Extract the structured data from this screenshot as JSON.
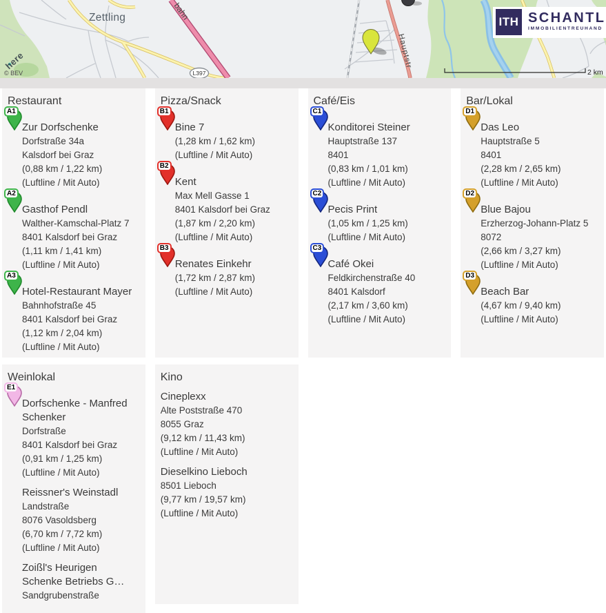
{
  "map": {
    "town_label": "Zettling",
    "autobahn_label": "bahn",
    "street_label": "Hauptstr",
    "shield_label": "L397",
    "provider_watermark": "here",
    "attribution": "© BEV",
    "scale_label": "2 km",
    "property_marker_color": "#d9e53c"
  },
  "logo": {
    "monogram": "ITH",
    "name": "SCHANTL",
    "subtitle": "IMMOBILIENTREUHAND",
    "brand_color": "#322c5f"
  },
  "categories": [
    {
      "title": "Restaurant",
      "slug": "restaurant",
      "row": 1,
      "indent": true,
      "color": "#3eb44a",
      "color_dark": "#1f8a2b",
      "items": [
        {
          "pin": "A1",
          "name": "Zur Dorfschenke",
          "lines": [
            "Dorfstraße 34a",
            "Kalsdorf bei Graz",
            "(0,88 km / 1,22 km)",
            "(Luftline / Mit Auto)"
          ]
        },
        {
          "pin": "A2",
          "name": "Gasthof Pendl",
          "lines": [
            "Walther-Kamschal-Platz 7",
            "8401 Kalsdorf bei Graz",
            "(1,11 km / 1,41 km)",
            "(Luftline / Mit Auto)"
          ]
        },
        {
          "pin": "A3",
          "name": "Hotel-Restaurant Mayer",
          "lines": [
            "Bahnhofstraße 45",
            "8401 Kalsdorf bei Graz",
            "(1,12 km / 2,04 km)",
            "(Luftline / Mit Auto)"
          ]
        }
      ]
    },
    {
      "title": "Pizza/Snack",
      "slug": "pizza-snack",
      "row": 1,
      "indent": true,
      "color": "#e2302a",
      "color_dark": "#9c1710",
      "items": [
        {
          "pin": "B1",
          "name": "Bine 7",
          "lines": [
            "(1,28 km / 1,62 km)",
            "(Luftline / Mit Auto)"
          ]
        },
        {
          "pin": "B2",
          "name": "Kent",
          "lines": [
            "Max Mell Gasse 1",
            "8401 Kalsdorf bei Graz",
            "(1,87 km / 2,20 km)",
            "(Luftline / Mit Auto)"
          ]
        },
        {
          "pin": "B3",
          "name": "Renates Einkehr",
          "lines": [
            "(1,72 km / 2,87 km)",
            "(Luftline / Mit Auto)"
          ]
        }
      ]
    },
    {
      "title": "Café/Eis",
      "slug": "cafe-eis",
      "row": 1,
      "indent": true,
      "color": "#2b4ed6",
      "color_dark": "#14267c",
      "items": [
        {
          "pin": "C1",
          "name": "Konditorei Steiner",
          "lines": [
            "Hauptstraße 137",
            "8401",
            "(0,83 km / 1,01 km)",
            "(Luftline / Mit Auto)"
          ]
        },
        {
          "pin": "C2",
          "name": "Pecis Print",
          "lines": [
            "(1,05 km / 1,25 km)",
            "(Luftline / Mit Auto)"
          ]
        },
        {
          "pin": "C3",
          "name": "Café Okei",
          "lines": [
            "Feldkirchenstraße 40",
            "8401 Kalsdorf",
            "(2,17 km / 3,60 km)",
            "(Luftline / Mit Auto)"
          ]
        }
      ]
    },
    {
      "title": "Bar/Lokal",
      "slug": "bar-lokal",
      "row": 1,
      "indent": true,
      "color": "#d4a02b",
      "color_dark": "#8f6c10",
      "items": [
        {
          "pin": "D1",
          "name": "Das Leo",
          "lines": [
            "Hauptstraße 5",
            "8401",
            "(2,28 km / 2,65 km)",
            "(Luftline / Mit Auto)"
          ]
        },
        {
          "pin": "D2",
          "name": "Blue Bajou",
          "lines": [
            "Erzherzog-Johann-Platz 5",
            "8072",
            "(2,66 km / 3,27 km)",
            "(Luftline / Mit Auto)"
          ]
        },
        {
          "pin": "D3",
          "name": "Beach Bar",
          "lines": [
            "(4,67 km / 9,40 km)",
            "(Luftline / Mit Auto)"
          ]
        }
      ]
    },
    {
      "title": "Weinlokal",
      "slug": "weinlokal",
      "row": 2,
      "indent": true,
      "tall": true,
      "color": "#f2b7e6",
      "color_dark": "#b76aa6",
      "items": [
        {
          "pin": "E1",
          "name": "Dorfschenke - Manfred Schenker",
          "lines": [
            "Dorfstraße",
            "8401 Kalsdorf bei Graz",
            "(0,91 km / 1,25 km)",
            "(Luftline / Mit Auto)"
          ]
        },
        {
          "name": "Reissner's Weinstadl",
          "lines": [
            "Landstraße",
            "8076 Vasoldsberg",
            "(6,70 km / 7,72 km)",
            "(Luftline / Mit Auto)"
          ]
        },
        {
          "name": "Zoißl's Heurigen Schenke Betriebs G…",
          "lines": [
            "Sandgrubenstraße"
          ]
        }
      ]
    },
    {
      "title": "Kino",
      "slug": "kino",
      "row": 2,
      "indent": false,
      "color": "#888888",
      "color_dark": "#555555",
      "items": [
        {
          "name": "Cineplexx",
          "lines": [
            "Alte Poststraße 470",
            "8055 Graz",
            "(9,12 km / 11,43 km)",
            "(Luftline / Mit Auto)"
          ]
        },
        {
          "name": "Dieselkino Lieboch",
          "lines": [
            "8501 Lieboch",
            "(9,77 km / 19,57 km)",
            "(Luftline / Mit Auto)"
          ]
        }
      ]
    }
  ]
}
